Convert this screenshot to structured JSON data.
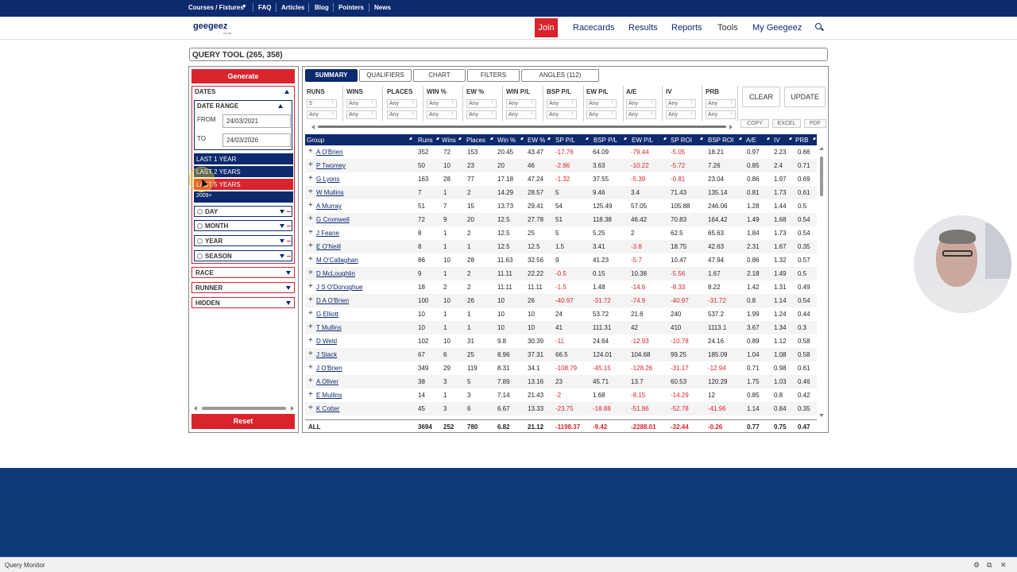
{
  "topnav": [
    "Courses / Fixtures",
    "FAQ",
    "Articles",
    "Blog",
    "Pointers",
    "News"
  ],
  "header": {
    "logo": "geegeez",
    "logo_sub": "co.uk",
    "join": "Join",
    "nav": [
      "Racecards",
      "Results",
      "Reports",
      "Tools",
      "My Geegeez"
    ],
    "active_nav": "Tools"
  },
  "tool_title": "QUERY TOOL (265, 358)",
  "left": {
    "generate": "Generate",
    "dates": "DATES",
    "date_range": "DATE RANGE",
    "from_label": "FROM",
    "from_value": "24/03/2021",
    "to_label": "TO",
    "to_value": "24/03/2026",
    "quick": [
      "LAST 1 YEAR",
      "LAST 2 YEARS",
      "LAST 5 YEARS",
      "2009+"
    ],
    "selected_quick": "LAST 5 YEARS",
    "dropdowns": [
      "DAY",
      "MONTH",
      "YEAR",
      "SEASON"
    ],
    "sections": [
      "RACE",
      "RUNNER",
      "HIDDEN"
    ],
    "reset": "Reset"
  },
  "tabs": [
    "SUMMARY",
    "QUALIFIERS",
    "CHART",
    "FILTERS",
    "ANGLES (112)"
  ],
  "active_tab": "SUMMARY",
  "filters": {
    "columns": [
      "RUNS",
      "WINS",
      "PLACES",
      "WIN %",
      "EW %",
      "WIN P/L",
      "BSP P/L",
      "EW P/L",
      "A/E",
      "IV",
      "PRB"
    ],
    "min_values": [
      "5",
      "Any",
      "Any",
      "Any",
      "Any",
      "Any",
      "Any",
      "Any",
      "Any",
      "Any",
      "Any"
    ],
    "max_values": [
      "Any",
      "Any",
      "Any",
      "Any",
      "Any",
      "Any",
      "Any",
      "Any",
      "Any",
      "Any",
      "Any"
    ]
  },
  "buttons": {
    "clear": "CLEAR",
    "update": "UPDATE",
    "copy": "COPY",
    "excel": "EXCEL",
    "pdf": "PDF"
  },
  "table": {
    "headers": [
      "Group",
      "Runs",
      "Wins",
      "Places",
      "Win %",
      "EW %",
      "SP P/L",
      "BSP P/L",
      "EW P/L",
      "SP ROI",
      "BSP ROI",
      "A/E",
      "IV",
      "PRB"
    ],
    "rows": [
      [
        "A O'Brien",
        "352",
        "72",
        "153",
        "20.45",
        "43.47",
        "-17.76",
        "64.09",
        "-79.44",
        "-5.05",
        "18.21",
        "0.97",
        "2.23",
        "0.66"
      ],
      [
        "P Twomey",
        "50",
        "10",
        "23",
        "20",
        "46",
        "-2.86",
        "3.63",
        "-10.22",
        "-5.72",
        "7.26",
        "0.85",
        "2.4",
        "0.71"
      ],
      [
        "G Lyons",
        "163",
        "28",
        "77",
        "17.18",
        "47.24",
        "-1.32",
        "37.55",
        "-5.39",
        "-0.81",
        "23.04",
        "0.86",
        "1.97",
        "0.69"
      ],
      [
        "W Mullins",
        "7",
        "1",
        "2",
        "14.29",
        "28.57",
        "5",
        "9.46",
        "3.4",
        "71.43",
        "135.14",
        "0.81",
        "1.73",
        "0.61"
      ],
      [
        "A Murray",
        "51",
        "7",
        "15",
        "13.73",
        "29.41",
        "54",
        "125.49",
        "57.05",
        "105.88",
        "246.06",
        "1.28",
        "1.44",
        "0.5"
      ],
      [
        "G Cromwell",
        "72",
        "9",
        "20",
        "12.5",
        "27.78",
        "51",
        "118.38",
        "46.42",
        "70.83",
        "164.42",
        "1.49",
        "1.68",
        "0.54"
      ],
      [
        "J Feane",
        "8",
        "1",
        "2",
        "12.5",
        "25",
        "5",
        "5.25",
        "2",
        "62.5",
        "65.63",
        "1.84",
        "1.73",
        "0.54"
      ],
      [
        "E O'Neill",
        "8",
        "1",
        "1",
        "12.5",
        "12.5",
        "1.5",
        "3.41",
        "-3.8",
        "18.75",
        "42.63",
        "2.31",
        "1.67",
        "0.35"
      ],
      [
        "M O'Callaghan",
        "86",
        "10",
        "28",
        "11.63",
        "32.56",
        "9",
        "41.23",
        "-5.7",
        "10.47",
        "47.94",
        "0.86",
        "1.32",
        "0.57"
      ],
      [
        "D McLoughlin",
        "9",
        "1",
        "2",
        "11.11",
        "22.22",
        "-0.5",
        "0.15",
        "10.38",
        "-5.56",
        "1.67",
        "2.18",
        "1.49",
        "0.5"
      ],
      [
        "J S O'Donoghue",
        "18",
        "2",
        "2",
        "11.11",
        "11.11",
        "-1.5",
        "1.48",
        "-14.6",
        "-8.33",
        "8.22",
        "1.42",
        "1.31",
        "0.49"
      ],
      [
        "D A O'Brien",
        "100",
        "10",
        "26",
        "10",
        "26",
        "-40.97",
        "-31.72",
        "-74.9",
        "-40.97",
        "-31.72",
        "0.8",
        "1.14",
        "0.54"
      ],
      [
        "G Elliott",
        "10",
        "1",
        "1",
        "10",
        "10",
        "24",
        "53.72",
        "21.6",
        "240",
        "537.2",
        "1.99",
        "1.24",
        "0.44"
      ],
      [
        "T Mullins",
        "10",
        "1",
        "1",
        "10",
        "10",
        "41",
        "111.31",
        "42",
        "410",
        "1113.1",
        "3.67",
        "1.34",
        "0.3"
      ],
      [
        "D Weld",
        "102",
        "10",
        "31",
        "9.8",
        "30.39",
        "-11",
        "24.64",
        "-12.93",
        "-10.78",
        "24.16",
        "0.89",
        "1.12",
        "0.58"
      ],
      [
        "J Stack",
        "67",
        "6",
        "25",
        "8.96",
        "37.31",
        "66.5",
        "124.01",
        "104.68",
        "99.25",
        "185.09",
        "1.04",
        "1.08",
        "0.58"
      ],
      [
        "J O'Brien",
        "349",
        "29",
        "119",
        "8.31",
        "34.1",
        "-108.79",
        "-45.15",
        "-128.26",
        "-31.17",
        "-12.94",
        "0.71",
        "0.98",
        "0.61"
      ],
      [
        "A Oliver",
        "38",
        "3",
        "5",
        "7.89",
        "13.16",
        "23",
        "45.71",
        "13.7",
        "60.53",
        "120.29",
        "1.75",
        "1.03",
        "0.46"
      ],
      [
        "E Mullins",
        "14",
        "1",
        "3",
        "7.14",
        "21.43",
        "-2",
        "1.68",
        "-8.15",
        "-14.29",
        "12",
        "0.85",
        "0.8",
        "0.42"
      ],
      [
        "K Cotter",
        "45",
        "3",
        "6",
        "6.67",
        "13.33",
        "-23.75",
        "-18.88",
        "-51.86",
        "-52.78",
        "-41.96",
        "1.14",
        "0.84",
        "0.35"
      ]
    ],
    "total": [
      "ALL",
      "3694",
      "252",
      "780",
      "6.82",
      "21.12",
      "-1198.37",
      "-9.42",
      "-2288.01",
      "-32.44",
      "-0.26",
      "0.77",
      "0.75",
      "0.47"
    ]
  },
  "query_monitor": "Query Monitor",
  "colors": {
    "navy": "#0d2a6e",
    "red": "#d9232d",
    "footer": "#0d3b7a"
  }
}
